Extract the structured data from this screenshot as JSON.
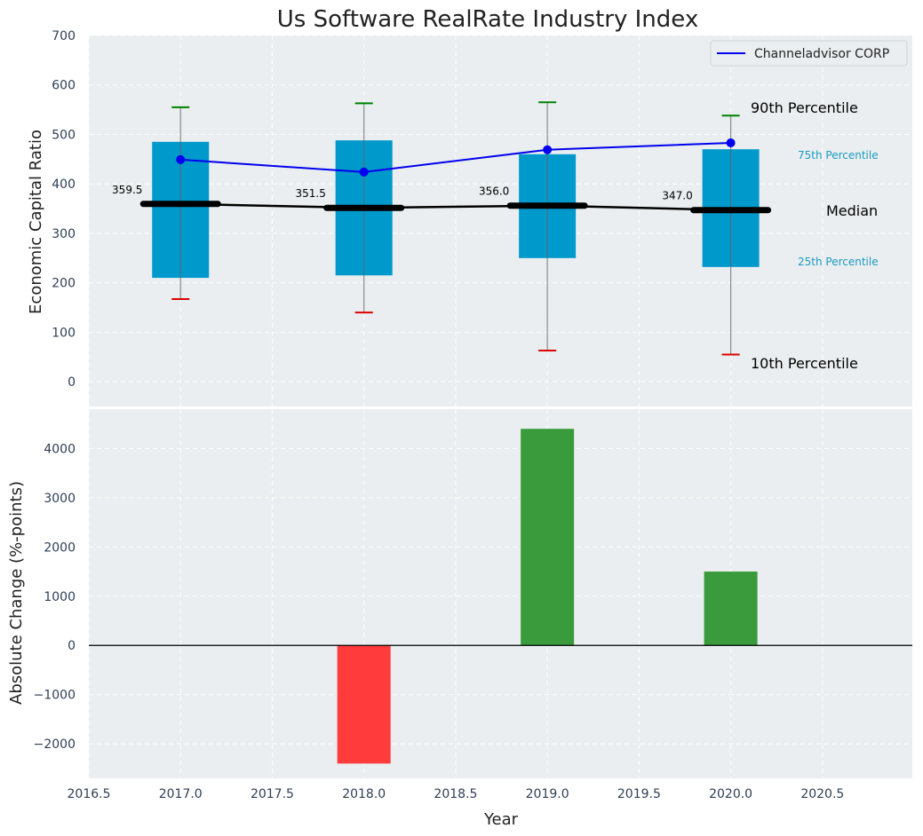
{
  "title": "Us Software RealRate Industry Index",
  "top_ylabel": "Economic Capital Ratio",
  "bottom_ylabel": "Absolute Change (%-points)",
  "xlabel": "Year",
  "legend_label": "Channeladvisor CORP",
  "annotations": {
    "p90": "90th Percentile",
    "p75": "75th Percentile",
    "median": "Median",
    "p25": "25th Percentile",
    "p10": "10th Percentile"
  },
  "colors": {
    "box": "#0099cc",
    "company": "#0000ee",
    "median": "#000000",
    "p90_whisker": "#008000",
    "p10_whisker": "#dd0000",
    "positive": "#3a9b3c",
    "negative": "#ff3b3b",
    "background": "#eaeef0"
  },
  "chart_data": [
    {
      "type": "box",
      "years": [
        2017,
        2018,
        2019,
        2020
      ],
      "p10": [
        167,
        140,
        63,
        55
      ],
      "p25": [
        210,
        215,
        250,
        232
      ],
      "median": [
        359.5,
        351.5,
        356.0,
        347.0
      ],
      "median_labels": [
        "359.5",
        "351.5",
        "356.0",
        "347.0"
      ],
      "p75": [
        485,
        488,
        460,
        470
      ],
      "p90": [
        555,
        563,
        565,
        538
      ],
      "series": [
        {
          "name": "Channeladvisor CORP",
          "values": [
            449,
            424,
            469,
            483
          ]
        }
      ],
      "ylabel": "Economic Capital Ratio",
      "ylim": [
        -50,
        700
      ],
      "yticks": [
        0,
        100,
        200,
        300,
        400,
        500,
        600,
        700
      ],
      "xlim": [
        2016.5,
        2020.99
      ],
      "xticks": [
        2016.5,
        2017.0,
        2017.5,
        2018.0,
        2018.5,
        2019.0,
        2019.5,
        2020.0,
        2020.5
      ],
      "grid": true,
      "legend": "top-right"
    },
    {
      "type": "bar",
      "categories": [
        2017,
        2018,
        2019,
        2020
      ],
      "values": [
        0,
        -2400,
        4400,
        1500
      ],
      "ylabel": "Absolute Change (%-points)",
      "xlabel": "Year",
      "ylim": [
        -2700,
        4800
      ],
      "yticks": [
        -2000,
        -1000,
        0,
        1000,
        2000,
        3000,
        4000
      ],
      "ytick_labels": [
        "−2000",
        "−1000",
        "0",
        "1000",
        "2000",
        "3000",
        "4000"
      ],
      "xticks": [
        2016.5,
        2017.0,
        2017.5,
        2018.0,
        2018.5,
        2019.0,
        2019.5,
        2020.0,
        2020.5
      ],
      "xtick_labels": [
        "2016.5",
        "2017.0",
        "2017.5",
        "2018.0",
        "2018.5",
        "2019.0",
        "2019.5",
        "2020.0",
        "2020.5"
      ],
      "grid": true
    }
  ]
}
